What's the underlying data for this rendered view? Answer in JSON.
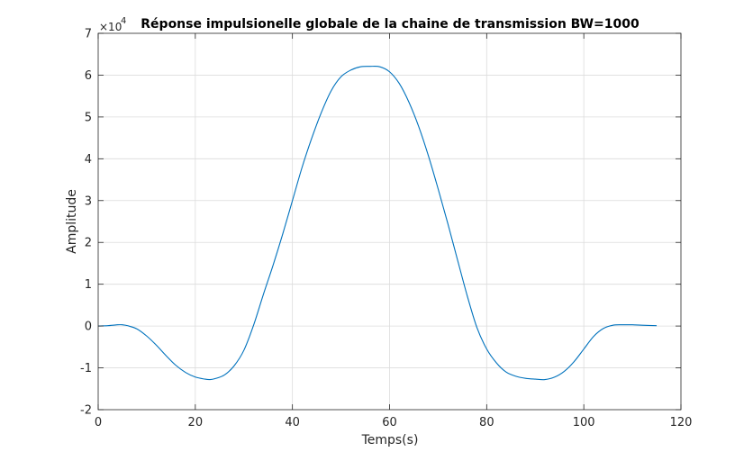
{
  "chart_data": {
    "type": "line",
    "title": "Réponse impulsionelle globale de la chaine de transmission BW=1000",
    "xlabel": "Temps(s)",
    "ylabel": "Amplitude",
    "xlim": [
      0,
      120
    ],
    "ylim": [
      -2,
      7
    ],
    "y_exponent_label": "×10",
    "y_exponent_power": "4",
    "grid": true,
    "line_color": "#0072BD",
    "x_ticks": [
      "0",
      "20",
      "40",
      "60",
      "80",
      "100",
      "120"
    ],
    "y_ticks": [
      "-2",
      "-1",
      "0",
      "1",
      "2",
      "3",
      "4",
      "5",
      "6",
      "7"
    ],
    "series": [
      {
        "x": [
          0,
          2,
          4,
          5,
          6,
          8,
          10,
          12,
          14,
          16,
          18,
          20,
          22,
          23,
          24,
          26,
          28,
          30,
          32,
          34,
          36,
          38,
          40,
          42,
          44,
          46,
          48,
          50,
          52,
          54,
          56,
          58,
          60,
          62,
          64,
          66,
          68,
          70,
          72,
          74,
          76,
          78,
          80,
          82,
          84,
          86,
          88,
          90,
          92,
          94,
          96,
          98,
          100,
          102,
          104,
          106,
          108,
          110,
          112,
          115
        ],
        "y": [
          0.0,
          0.01,
          0.03,
          0.03,
          0.01,
          -0.07,
          -0.24,
          -0.46,
          -0.71,
          -0.94,
          -1.11,
          -1.22,
          -1.27,
          -1.28,
          -1.26,
          -1.17,
          -0.95,
          -0.58,
          0.02,
          0.75,
          1.45,
          2.2,
          3.0,
          3.8,
          4.5,
          5.12,
          5.63,
          5.96,
          6.12,
          6.2,
          6.21,
          6.2,
          6.08,
          5.8,
          5.35,
          4.77,
          4.07,
          3.28,
          2.45,
          1.58,
          0.72,
          -0.04,
          -0.55,
          -0.88,
          -1.1,
          -1.2,
          -1.25,
          -1.27,
          -1.28,
          -1.22,
          -1.08,
          -0.85,
          -0.55,
          -0.25,
          -0.06,
          0.02,
          0.03,
          0.03,
          0.02,
          0.01
        ]
      }
    ]
  }
}
